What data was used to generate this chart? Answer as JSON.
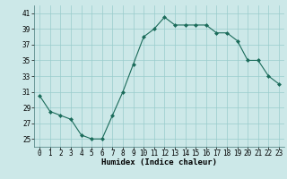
{
  "x": [
    0,
    1,
    2,
    3,
    4,
    5,
    6,
    7,
    8,
    9,
    10,
    11,
    12,
    13,
    14,
    15,
    16,
    17,
    18,
    19,
    20,
    21,
    22,
    23
  ],
  "y": [
    30.5,
    28.5,
    28.0,
    27.5,
    25.5,
    25.0,
    25.0,
    28.0,
    31.0,
    34.5,
    38.0,
    39.0,
    40.5,
    39.5,
    39.5,
    39.5,
    39.5,
    38.5,
    38.5,
    37.5,
    35.0,
    35.0,
    33.0,
    32.0
  ],
  "line_color": "#1a6b5a",
  "marker": "D",
  "marker_size": 2,
  "bg_color": "#cce8e8",
  "grid_color": "#99cccc",
  "xlabel": "Humidex (Indice chaleur)",
  "ylim": [
    24,
    42
  ],
  "yticks": [
    25,
    27,
    29,
    31,
    33,
    35,
    37,
    39,
    41
  ],
  "xticks": [
    0,
    1,
    2,
    3,
    4,
    5,
    6,
    7,
    8,
    9,
    10,
    11,
    12,
    13,
    14,
    15,
    16,
    17,
    18,
    19,
    20,
    21,
    22,
    23
  ],
  "tick_fontsize": 5.5,
  "xlabel_fontsize": 6.5
}
